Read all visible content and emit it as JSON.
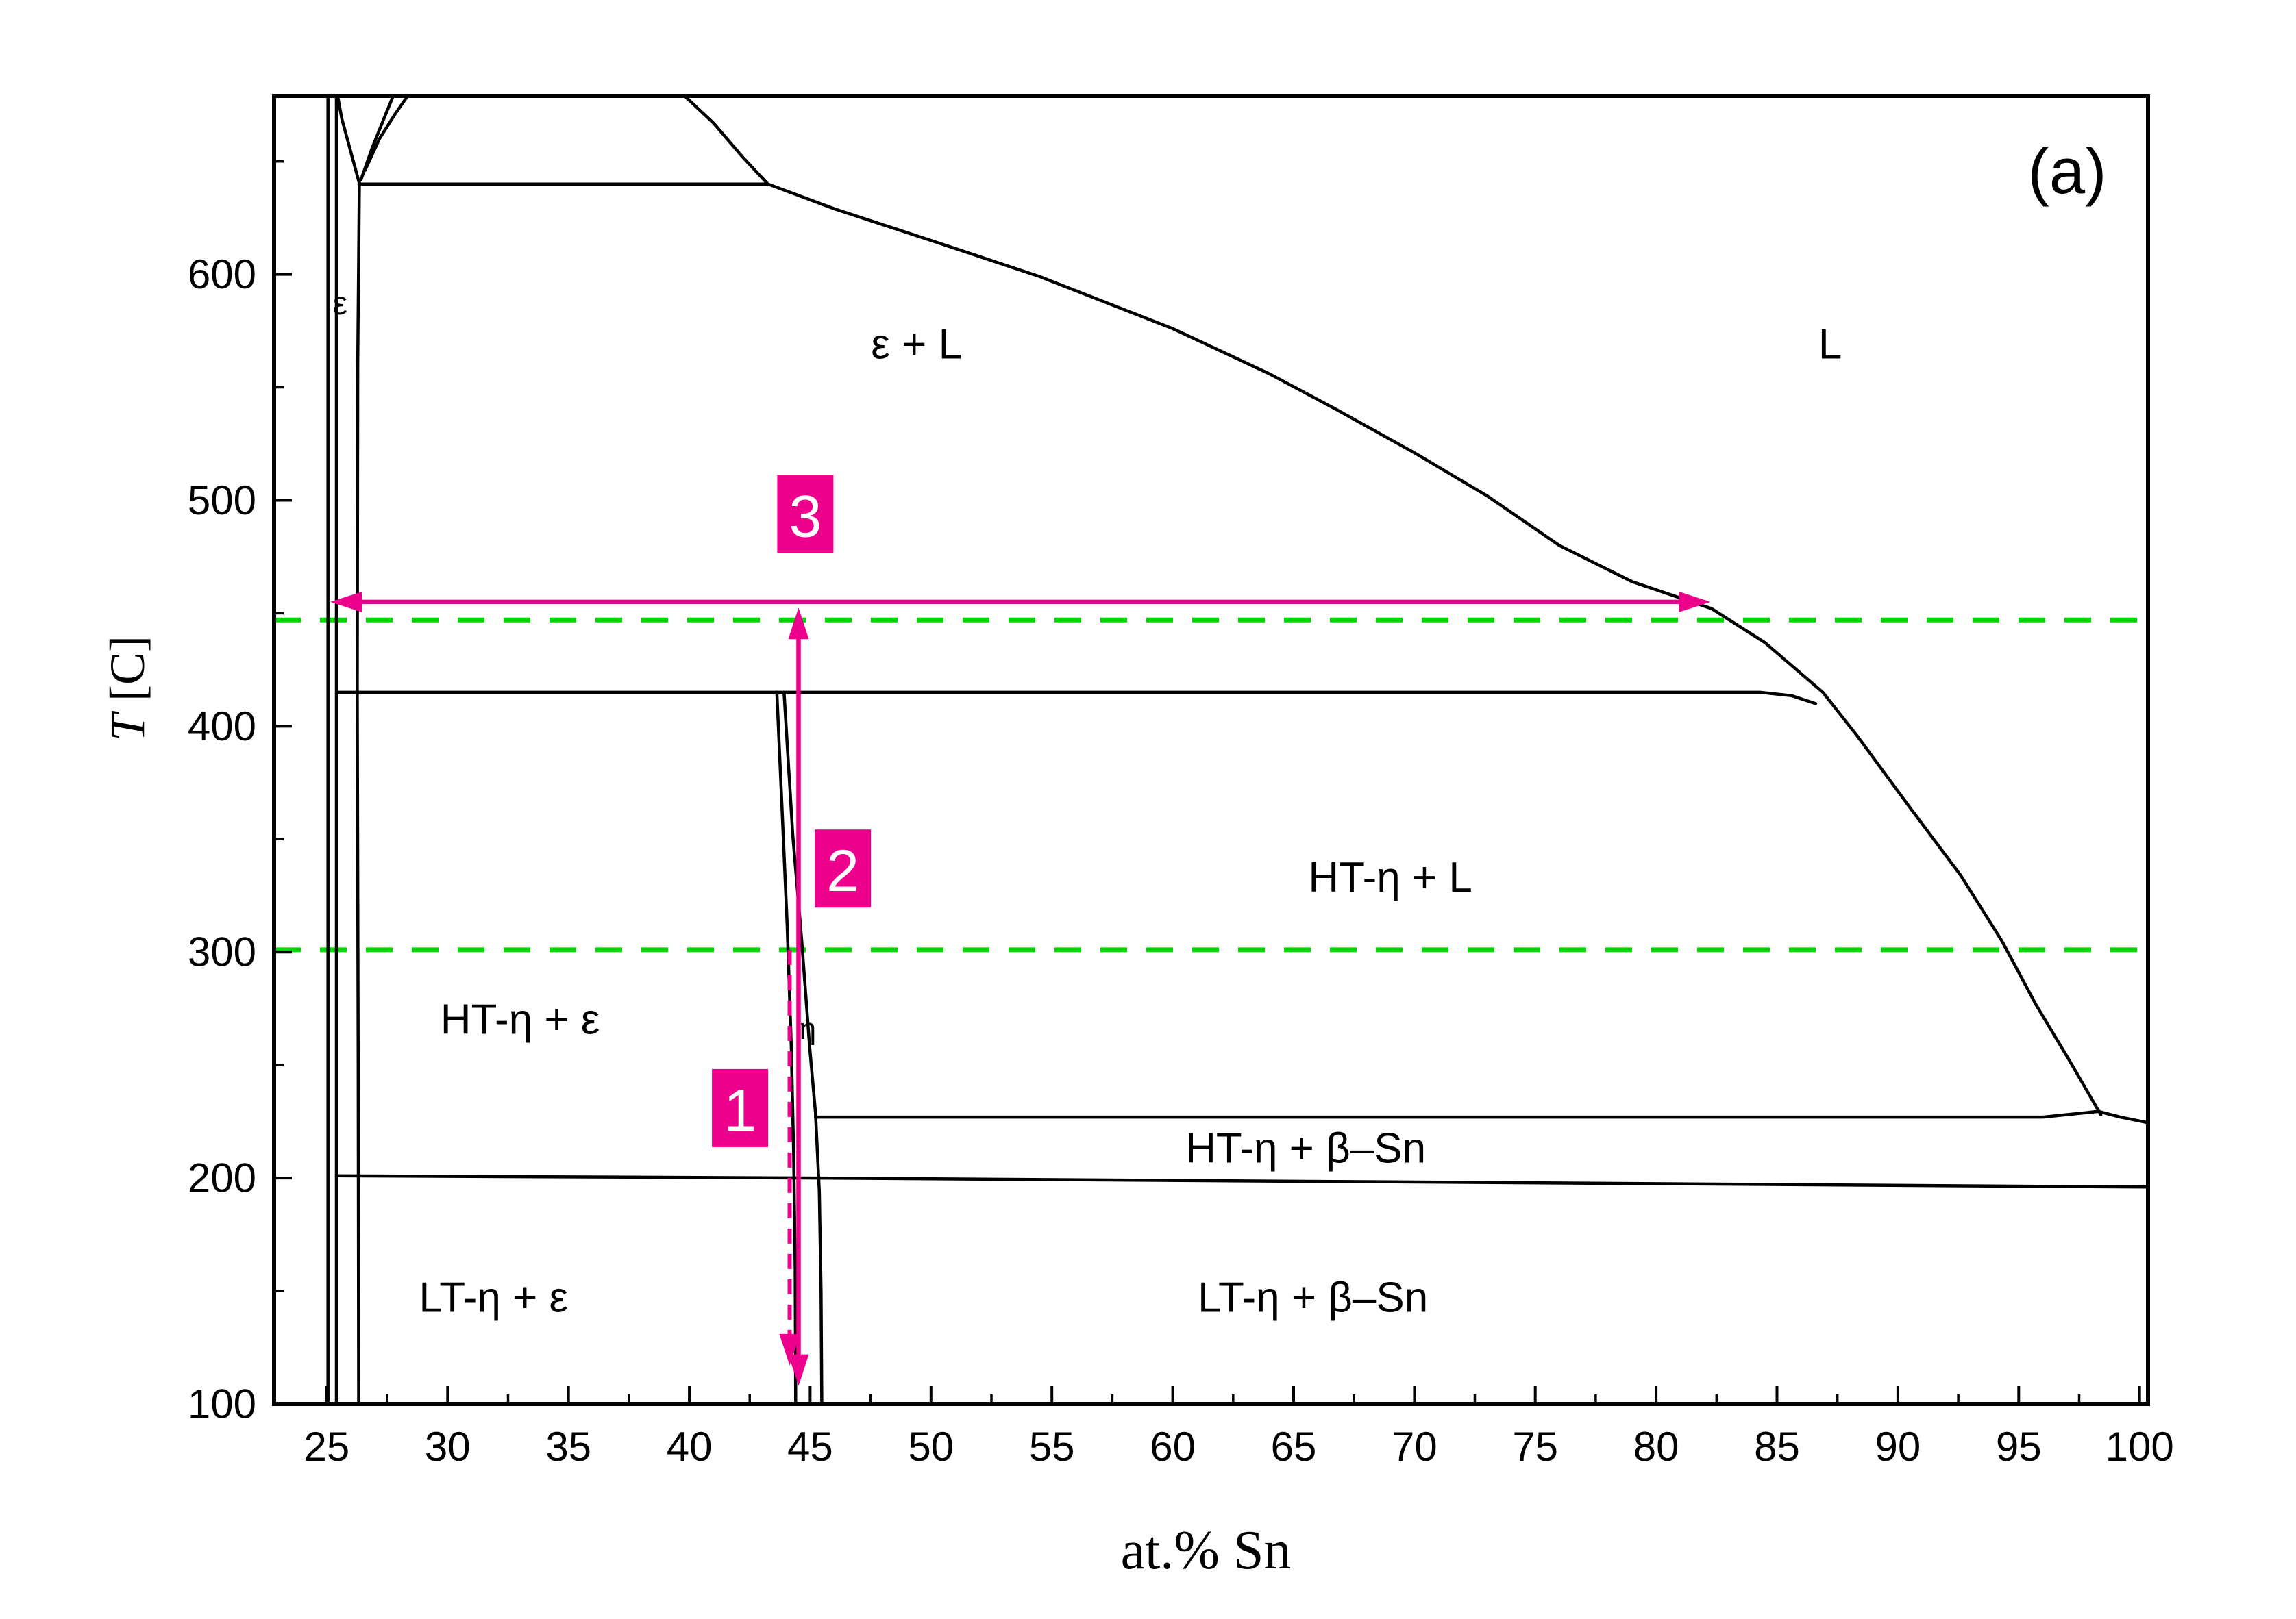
{
  "figure_label": "(a)",
  "chart_data": {
    "type": "line",
    "title": "",
    "xlabel": "at.% Sn",
    "ylabel": "T [C]",
    "ylabel_italic": "T",
    "ylabel_rest": " [C]",
    "xlim": [
      22.82,
      100.35
    ],
    "ylim": [
      100,
      679
    ],
    "x_ticks": [
      25,
      30,
      35,
      40,
      45,
      50,
      55,
      60,
      65,
      70,
      75,
      80,
      85,
      90,
      95,
      100
    ],
    "y_ticks": [
      100,
      200,
      300,
      400,
      500,
      600
    ],
    "grid": false,
    "colors": {
      "boundary": "#000000",
      "guide": "#00d800",
      "annotation": "#ec008c",
      "number_text": "#ffffff"
    },
    "guide_lines": [
      {
        "name": "upper-green-dashed",
        "T": 447
      },
      {
        "name": "lower-green-dashed",
        "T": 301
      }
    ],
    "boundaries": [
      {
        "name": "epsilon-left-outer",
        "points": [
          [
            25.05,
            679
          ],
          [
            25.05,
            100
          ]
        ]
      },
      {
        "name": "epsilon-left-inner",
        "points": [
          [
            25.4,
            679
          ],
          [
            25.4,
            100
          ]
        ]
      },
      {
        "name": "epsilon-right",
        "points": [
          [
            26.35,
            641
          ],
          [
            26.28,
            560
          ],
          [
            26.26,
            415
          ],
          [
            26.3,
            250
          ],
          [
            26.32,
            100
          ]
        ]
      },
      {
        "name": "gamma-wedge-left",
        "points": [
          [
            25.45,
            679
          ],
          [
            25.62,
            669
          ],
          [
            25.95,
            656
          ],
          [
            26.33,
            641
          ]
        ]
      },
      {
        "name": "gamma-wedge-right",
        "points": [
          [
            27.75,
            679
          ],
          [
            27.33,
            668
          ],
          [
            26.88,
            656
          ],
          [
            26.42,
            642
          ]
        ]
      },
      {
        "name": "gamma-wedge-right-outer",
        "points": [
          [
            28.35,
            679
          ],
          [
            27.83,
            671
          ],
          [
            27.18,
            660
          ],
          [
            26.58,
            646
          ]
        ]
      },
      {
        "name": "peritectic-640",
        "points": [
          [
            26.33,
            640
          ],
          [
            43.25,
            640
          ]
        ]
      },
      {
        "name": "liquidus",
        "points": [
          [
            39.8,
            679
          ],
          [
            41.0,
            667
          ],
          [
            42.2,
            652
          ],
          [
            43.25,
            640
          ],
          [
            46.0,
            629
          ],
          [
            50.0,
            615
          ],
          [
            54.5,
            599
          ],
          [
            60.0,
            576
          ],
          [
            64.0,
            556
          ],
          [
            66.8,
            540
          ],
          [
            70.0,
            521
          ],
          [
            73.0,
            502
          ],
          [
            76.0,
            480
          ],
          [
            79.0,
            464
          ],
          [
            82.3,
            452
          ],
          [
            84.5,
            437
          ],
          [
            86.9,
            415
          ],
          [
            88.3,
            396
          ],
          [
            90.5,
            364
          ],
          [
            92.6,
            334
          ],
          [
            94.3,
            305
          ],
          [
            95.7,
            277
          ],
          [
            97.1,
            252
          ],
          [
            98.4,
            228
          ]
        ]
      },
      {
        "name": "peritectic-415",
        "points": [
          [
            25.4,
            415
          ],
          [
            84.3,
            415
          ],
          [
            85.6,
            413.5
          ],
          [
            86.6,
            410
          ]
        ]
      },
      {
        "name": "eta-left",
        "points": [
          [
            43.62,
            415
          ],
          [
            43.85,
            360
          ],
          [
            44.05,
            312
          ],
          [
            44.22,
            258
          ],
          [
            44.32,
            210
          ],
          [
            44.38,
            160
          ],
          [
            44.4,
            100
          ]
        ]
      },
      {
        "name": "eta-right",
        "points": [
          [
            43.92,
            415
          ],
          [
            44.28,
            352
          ],
          [
            44.65,
            305
          ],
          [
            44.98,
            258
          ],
          [
            45.22,
            229
          ],
          [
            45.38,
            194
          ],
          [
            45.45,
            150
          ],
          [
            45.48,
            100
          ]
        ]
      },
      {
        "name": "eutectic-227",
        "points": [
          [
            45.22,
            227
          ],
          [
            96.0,
            227
          ],
          [
            98.3,
            229.5
          ],
          [
            99.2,
            227
          ],
          [
            100.35,
            224.5
          ]
        ]
      },
      {
        "name": "eutectoid-200",
        "points": [
          [
            25.4,
            201
          ],
          [
            45.3,
            200
          ],
          [
            100.35,
            196
          ]
        ]
      }
    ],
    "region_labels": [
      {
        "text": "ε",
        "x": 25.55,
        "T": 587,
        "size": 48
      },
      {
        "text": "ε + L",
        "x": 49.4,
        "T": 569,
        "size": 62
      },
      {
        "text": "L",
        "x": 87.2,
        "T": 569,
        "size": 62
      },
      {
        "text": "HT-η + L",
        "x": 69.0,
        "T": 333,
        "size": 62
      },
      {
        "text": "HT-η + ε",
        "x": 33.0,
        "T": 270,
        "size": 62
      },
      {
        "text": "η",
        "x": 44.9,
        "T": 266,
        "size": 44
      },
      {
        "text": "HT-η + β–Sn",
        "x": 65.5,
        "T": 213,
        "size": 62
      },
      {
        "text": "LT-η + ε",
        "x": 31.9,
        "T": 147,
        "size": 62
      },
      {
        "text": "LT-η + β–Sn",
        "x": 65.8,
        "T": 147,
        "size": 62
      }
    ],
    "annotations": {
      "horizontal_arrow": {
        "label": "3",
        "T": 455,
        "x_start": 25.15,
        "x_end": 82.25
      },
      "vertical_arrow_solid": {
        "label": "2",
        "x": 44.52,
        "T_top": 452.5,
        "T_bottom": 108
      },
      "vertical_arrow_dashed": {
        "label": "1",
        "x": 44.15,
        "T_top": 301,
        "T_bottom": 117
      },
      "number_labels": [
        {
          "text": "1",
          "x": 42.1,
          "T": 231
        },
        {
          "text": "2",
          "x": 46.35,
          "T": 337
        },
        {
          "text": "3",
          "x": 44.8,
          "T": 494
        }
      ]
    }
  }
}
